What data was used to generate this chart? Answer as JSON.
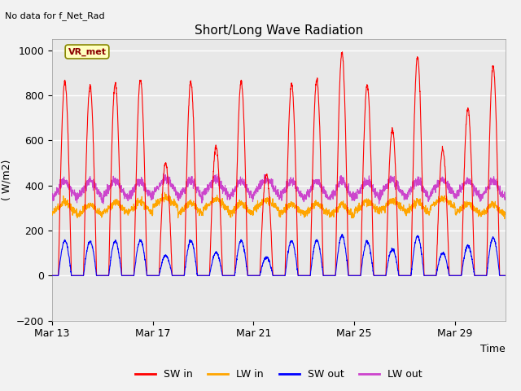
{
  "title": "Short/Long Wave Radiation",
  "xlabel": "Time",
  "ylabel": "( W/m2)",
  "ylim": [
    -200,
    1050
  ],
  "xlim_start": 0,
  "xlim_end": 18,
  "xtick_positions": [
    0,
    4,
    8,
    12,
    16
  ],
  "xtick_labels": [
    "Mar 13",
    "Mar 17",
    "Mar 21",
    "Mar 25",
    "Mar 29"
  ],
  "background_color": "#e8e8e8",
  "fig_background": "#f2f2f2",
  "annotation_text": "No data for f_Net_Rad",
  "box_label": "VR_met",
  "colors": {
    "SW_in": "#ff0000",
    "LW_in": "#ffa500",
    "SW_out": "#0000ff",
    "LW_out": "#cc44cc"
  },
  "legend_labels": [
    "SW in",
    "LW in",
    "SW out",
    "LW out"
  ],
  "grid_color": "#ffffff",
  "n_days": 18,
  "samples_per_day": 144,
  "sw_peaks": [
    860,
    840,
    850,
    870,
    500,
    860,
    570,
    860,
    450,
    850,
    870,
    990,
    845,
    650,
    970,
    560,
    740,
    930
  ],
  "cloud": [
    0.1,
    0.1,
    0.1,
    0.05,
    0.6,
    0.1,
    0.5,
    0.1,
    0.55,
    0.1,
    0.05,
    0.0,
    0.1,
    0.35,
    0.05,
    0.45,
    0.25,
    0.05
  ]
}
